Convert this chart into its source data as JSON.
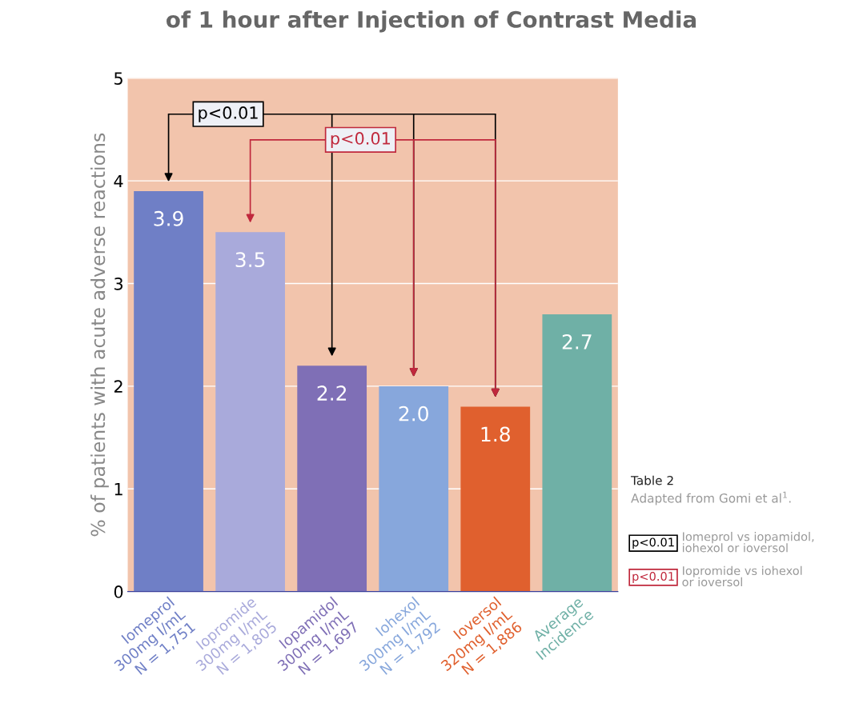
{
  "chart_data": {
    "type": "bar",
    "title": "of 1 hour after Injection of Contrast Media",
    "ylabel": "% of patients with acute adverse reactions",
    "categories": [
      "Iomeprol\n300mg I/mL\nN = 1,751",
      "Iopromide\n300mg I/mL\nN = 1,805",
      "Iopamidol\n300mg I/mL\nN = 1,697",
      "Iohexol\n300mg I/mL\nN = 1,792",
      "Ioversol\n320mg I/mL\nN = 1,886",
      "Average\nIncidence"
    ],
    "values": [
      3.9,
      3.5,
      2.2,
      2.0,
      1.8,
      2.7
    ],
    "colors": [
      "#6f7fc6",
      "#a9aadb",
      "#7f6fb6",
      "#87a7dc",
      "#e0602e",
      "#6fb0a6"
    ],
    "ylim": [
      0,
      5
    ],
    "yticks": [
      0,
      1,
      2,
      3,
      4,
      5
    ],
    "grid": "y",
    "value_labels": [
      "3.9",
      "3.5",
      "2.2",
      "2.0",
      "1.8",
      "2.7"
    ],
    "annotations": [
      "p<0.01",
      "p<0.01",
      "Table 2",
      "Adapted from Gomi et al$^{1}$.",
      "Iomeprol vs iopamidol,\niohexol or ioversol",
      "Iopromide vs iohexol\nor ioversol"
    ]
  }
}
